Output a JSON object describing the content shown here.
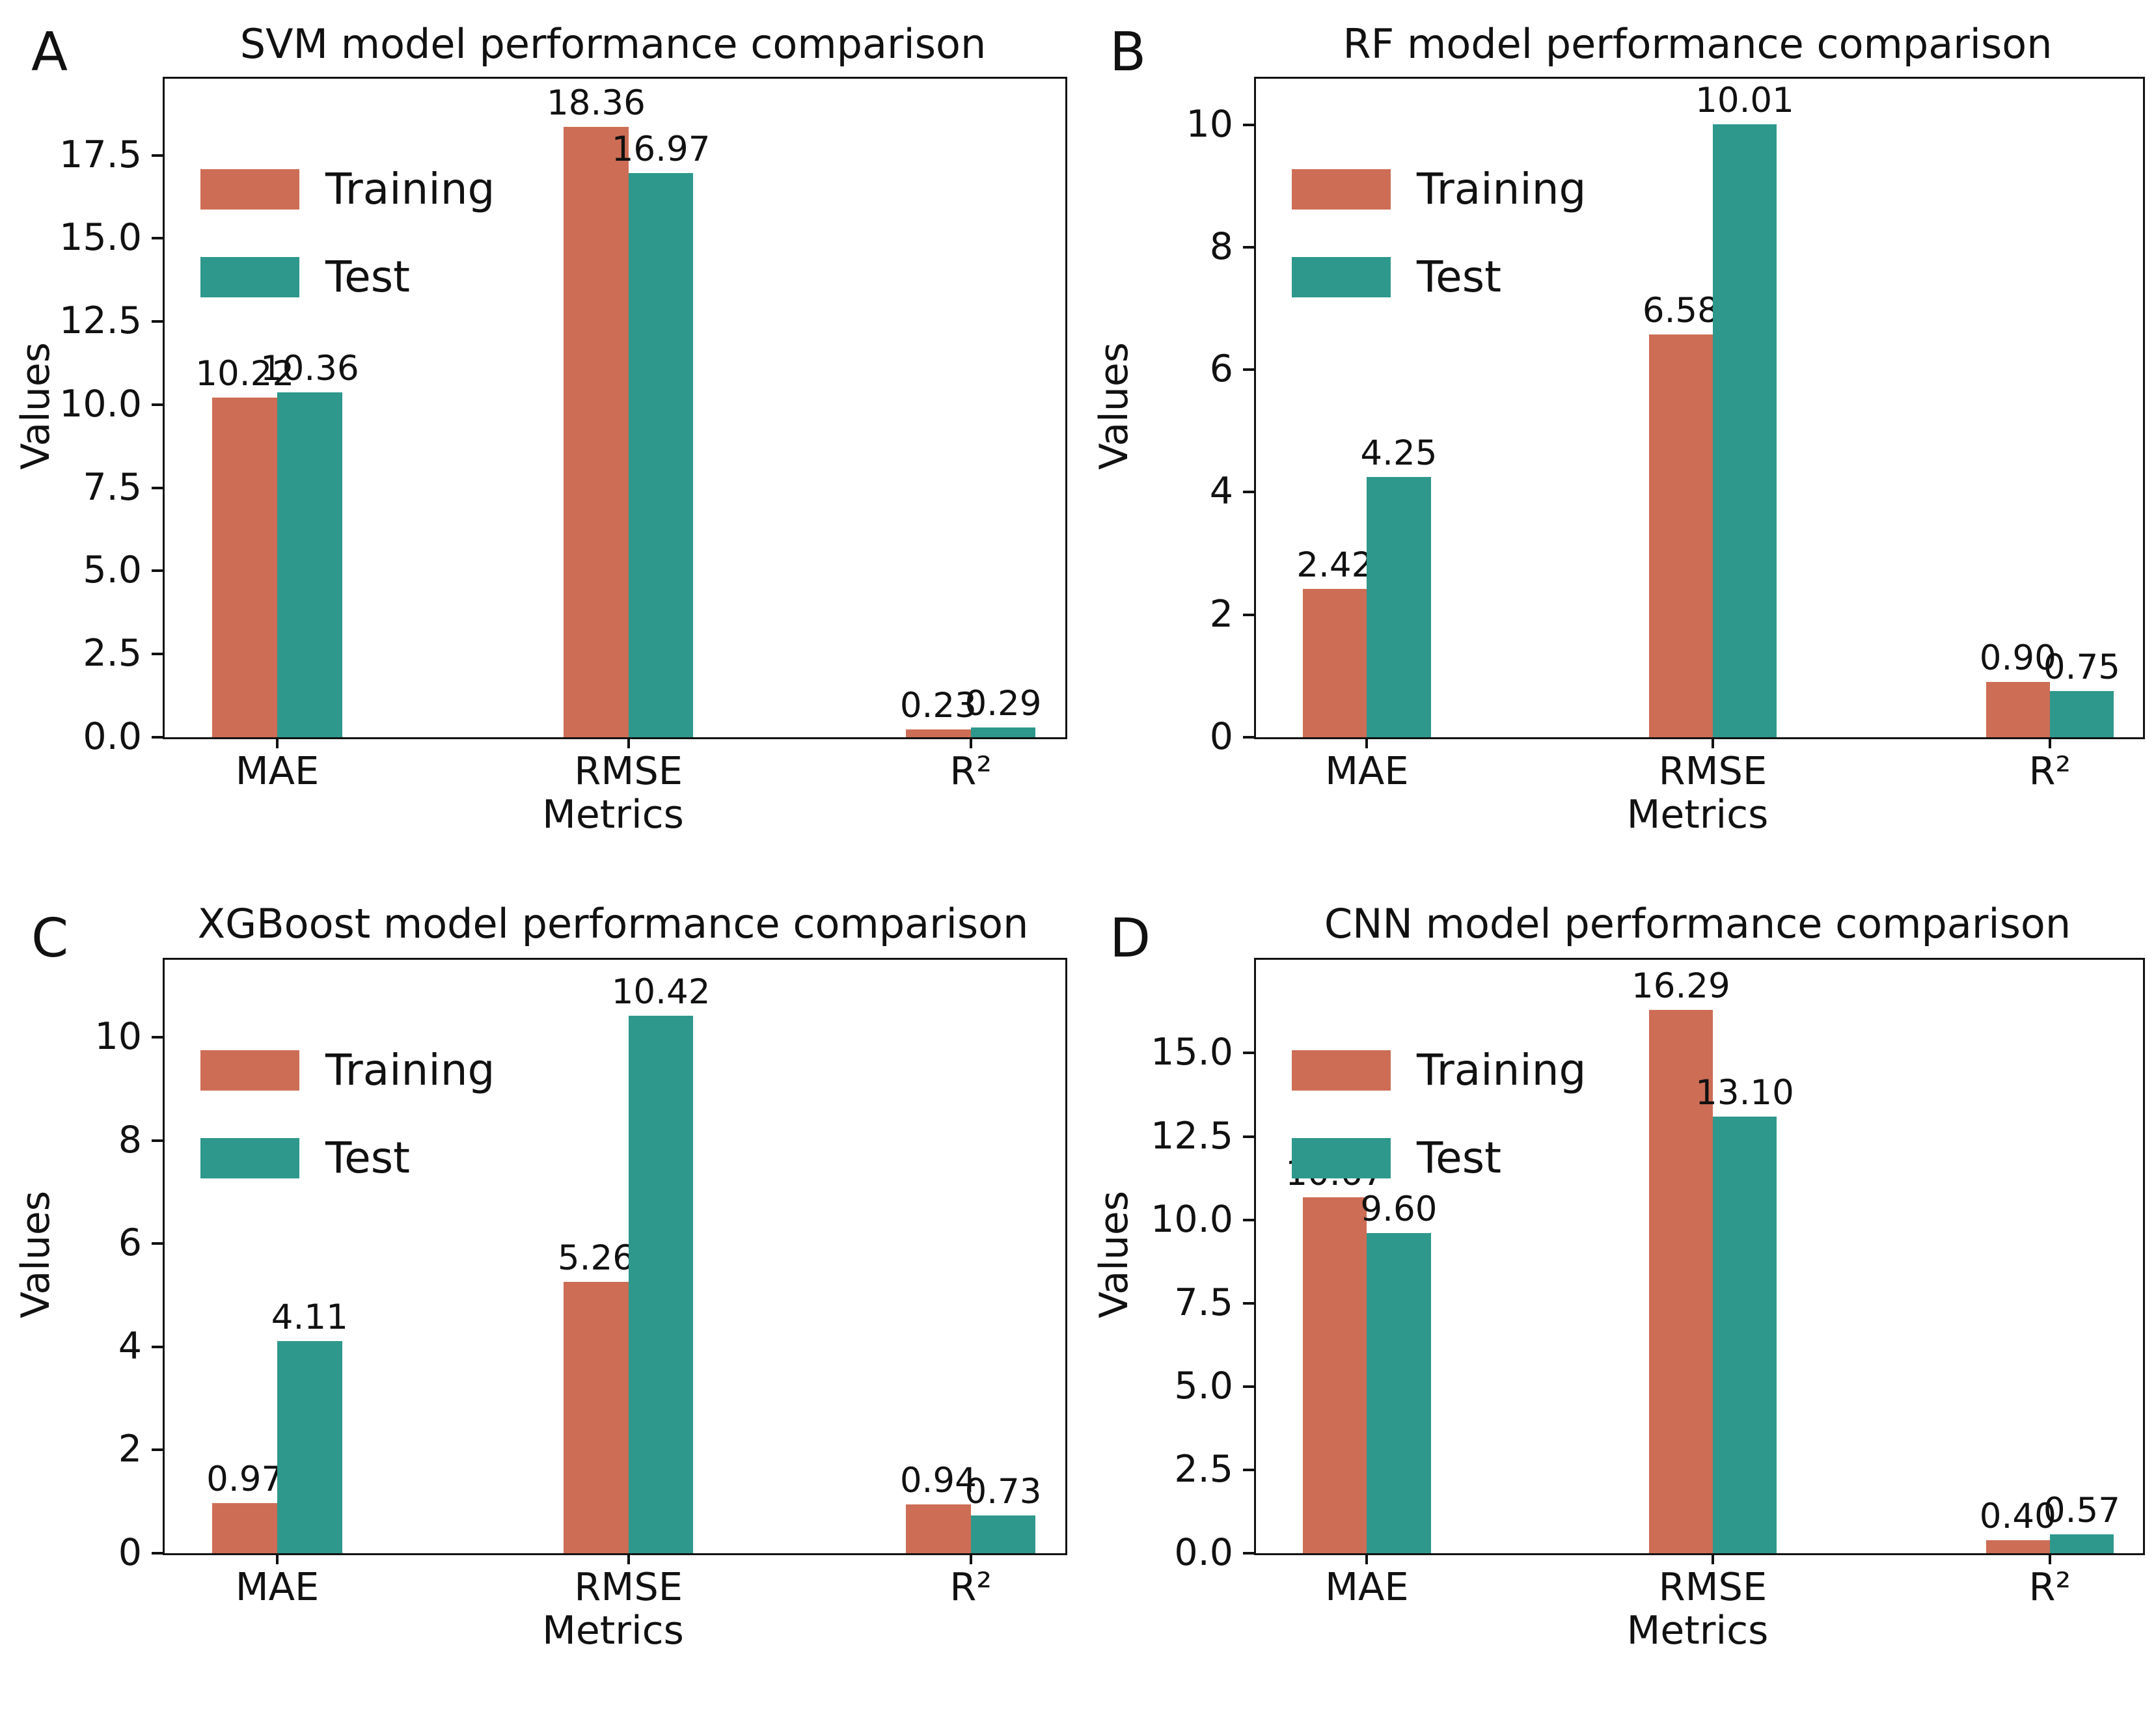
{
  "figure": {
    "background": "#ffffff",
    "axis_color": "#111111",
    "series_colors": {
      "Training": "#cd6d55",
      "Test": "#2e988c"
    },
    "legend_labels": [
      "Training",
      "Test"
    ]
  },
  "chart_data": [
    {
      "type": "bar",
      "panel_letter": "A",
      "title": "SVM model performance comparison",
      "xlabel": "Metrics",
      "ylabel": "Values",
      "categories": [
        "MAE",
        "RMSE",
        "R²"
      ],
      "series": [
        {
          "name": "Training",
          "values": [
            10.22,
            18.36,
            0.23
          ]
        },
        {
          "name": "Test",
          "values": [
            10.36,
            16.97,
            0.29
          ]
        }
      ],
      "ytick_values": [
        0,
        2.5,
        5,
        7.5,
        10,
        12.5,
        15,
        17.5
      ],
      "ytick_labels": [
        "0.0",
        "2.5",
        "5.0",
        "7.5",
        "10.0",
        "12.5",
        "15.0",
        "17.5"
      ],
      "ylim": [
        0,
        19.8
      ],
      "legend_position": "upper left",
      "grid": false
    },
    {
      "type": "bar",
      "panel_letter": "B",
      "title": "RF model performance comparison",
      "xlabel": "Metrics",
      "ylabel": "Values",
      "categories": [
        "MAE",
        "RMSE",
        "R²"
      ],
      "series": [
        {
          "name": "Training",
          "values": [
            2.42,
            6.58,
            0.9
          ]
        },
        {
          "name": "Test",
          "values": [
            4.25,
            10.01,
            0.75
          ]
        }
      ],
      "ytick_values": [
        0,
        2,
        4,
        6,
        8,
        10
      ],
      "ytick_labels": [
        "0",
        "2",
        "4",
        "6",
        "8",
        "10"
      ],
      "ylim": [
        0,
        10.75
      ],
      "legend_position": "upper left",
      "grid": false
    },
    {
      "type": "bar",
      "panel_letter": "C",
      "title": "XGBoost model performance comparison",
      "xlabel": "Metrics",
      "ylabel": "Values",
      "categories": [
        "MAE",
        "RMSE",
        "R²"
      ],
      "series": [
        {
          "name": "Training",
          "values": [
            0.97,
            5.26,
            0.94
          ]
        },
        {
          "name": "Test",
          "values": [
            4.11,
            10.42,
            0.73
          ]
        }
      ],
      "ytick_values": [
        0,
        2,
        4,
        6,
        8,
        10
      ],
      "ytick_labels": [
        "0",
        "2",
        "4",
        "6",
        "8",
        "10"
      ],
      "ylim": [
        0,
        11.5
      ],
      "legend_position": "upper left",
      "grid": false
    },
    {
      "type": "bar",
      "panel_letter": "D",
      "title": "CNN model performance comparison",
      "xlabel": "Metrics",
      "ylabel": "Values",
      "categories": [
        "MAE",
        "RMSE",
        "R²"
      ],
      "series": [
        {
          "name": "Training",
          "values": [
            10.67,
            16.29,
            0.4
          ]
        },
        {
          "name": "Test",
          "values": [
            9.6,
            13.1,
            0.57
          ]
        }
      ],
      "ytick_values": [
        0,
        2.5,
        5,
        7.5,
        10,
        12.5,
        15
      ],
      "ytick_labels": [
        "0.0",
        "2.5",
        "5.0",
        "7.5",
        "10.0",
        "12.5",
        "15.0"
      ],
      "ylim": [
        0,
        17.8
      ],
      "legend_position": "upper left",
      "grid": false
    }
  ]
}
